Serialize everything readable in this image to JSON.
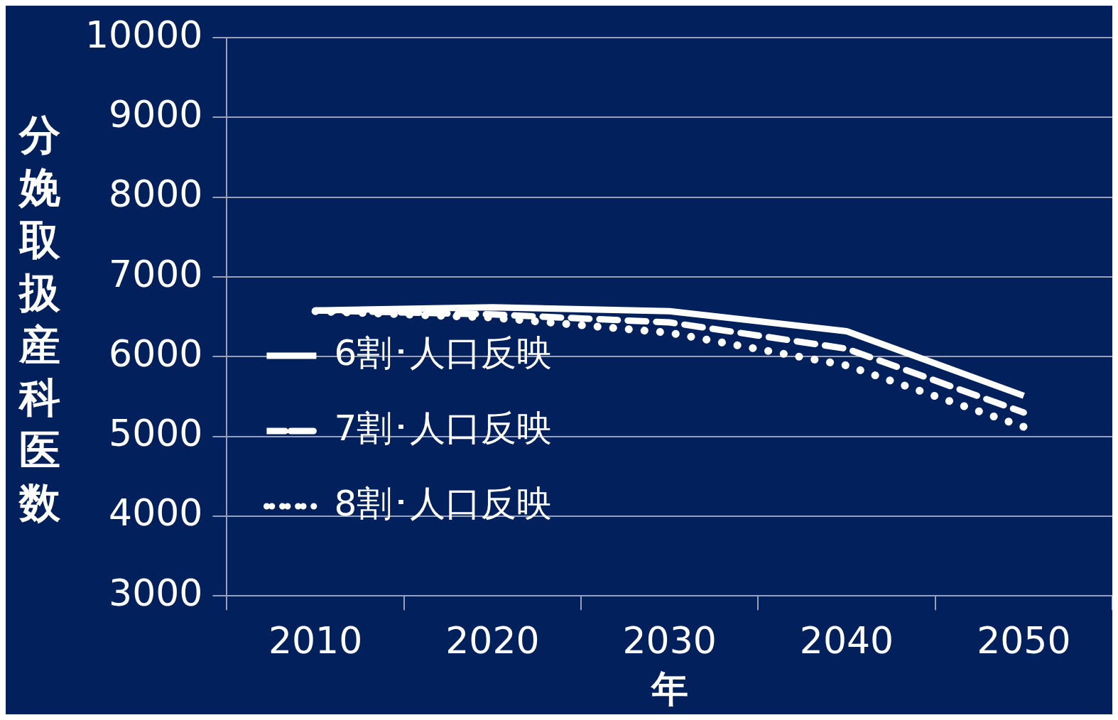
{
  "chart_data": {
    "type": "line",
    "xlabel": "年",
    "ylabel": "分娩取扱産科医数",
    "categories": [
      "2010",
      "2020",
      "2030",
      "2040",
      "2050"
    ],
    "series": [
      {
        "name": "6割･人口反映",
        "color": "#ffffff",
        "line_style": "solid",
        "values": [
          6580,
          6620,
          6570,
          6320,
          5510
        ]
      },
      {
        "name": "7割･人口反映",
        "color": "#ffffff",
        "line_style": "dashed",
        "values": [
          6580,
          6530,
          6430,
          6100,
          5300
        ]
      },
      {
        "name": "8割･人口反映",
        "color": "#ffffff",
        "line_style": "dotted",
        "values": [
          6570,
          6490,
          6300,
          5890,
          5120
        ]
      }
    ],
    "ylim": [
      3000,
      10000
    ],
    "yticks": [
      3000,
      4000,
      5000,
      6000,
      7000,
      8000,
      9000,
      10000
    ],
    "grid": "y",
    "legend": "left",
    "marker": "none"
  }
}
